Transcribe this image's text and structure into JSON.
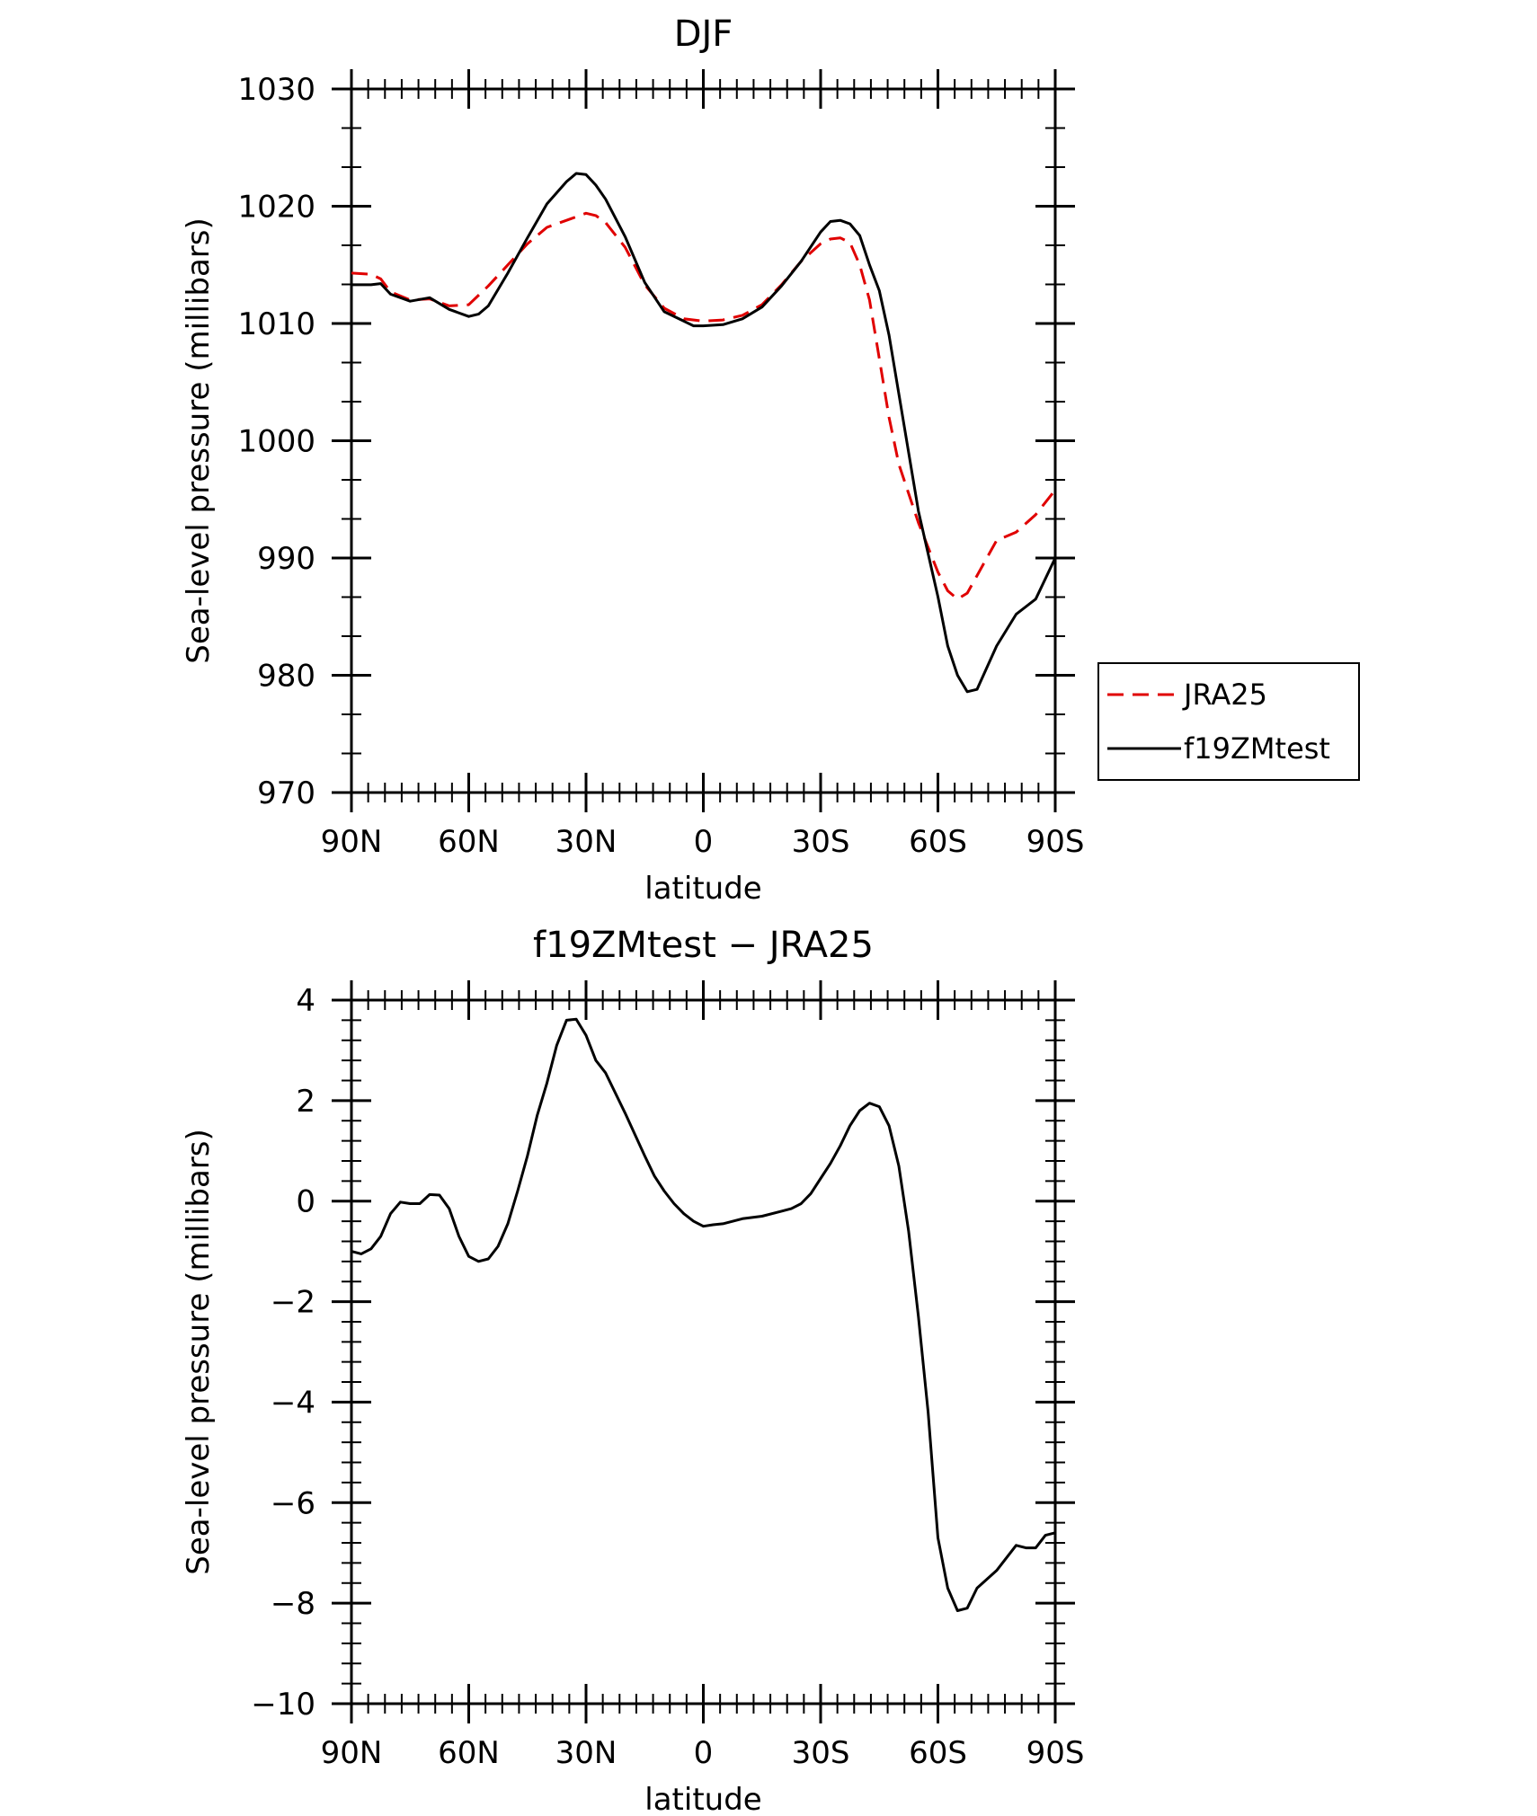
{
  "chart_data": [
    {
      "type": "line",
      "title": "DJF",
      "xlabel": "latitude",
      "ylabel": "Sea-level pressure (millibars)",
      "xlim": [
        90,
        -90
      ],
      "ylim": [
        970,
        1030
      ],
      "x_ticks": [
        {
          "value": 90,
          "label": "90N"
        },
        {
          "value": 60,
          "label": "60N"
        },
        {
          "value": 30,
          "label": "30N"
        },
        {
          "value": 0,
          "label": "0"
        },
        {
          "value": -30,
          "label": "30S"
        },
        {
          "value": -60,
          "label": "60S"
        },
        {
          "value": -90,
          "label": "90S"
        }
      ],
      "y_ticks": [
        {
          "value": 1030,
          "label": "1030"
        },
        {
          "value": 1020,
          "label": "1020"
        },
        {
          "value": 1010,
          "label": "1010"
        },
        {
          "value": 1000,
          "label": "1000"
        },
        {
          "value": 990,
          "label": "990"
        },
        {
          "value": 980,
          "label": "980"
        },
        {
          "value": 970,
          "label": "970"
        }
      ],
      "legend_position": "outside-right",
      "series": [
        {
          "name": "JRA25",
          "color": "#e00000",
          "dash": "dashed",
          "x": [
            90,
            85,
            82.5,
            80,
            75,
            70,
            65,
            60,
            55,
            50,
            45,
            40,
            35,
            30,
            27.5,
            25,
            20,
            15,
            10,
            5,
            0,
            -5,
            -10,
            -15,
            -20,
            -25,
            -30,
            -32.5,
            -35,
            -37.5,
            -40,
            -42.5,
            -45,
            -47.5,
            -50,
            -55,
            -60,
            -62.5,
            -65,
            -67.5,
            -70,
            -75,
            -80,
            -85,
            -90
          ],
          "y": [
            1014.3,
            1014.2,
            1013.8,
            1012.7,
            1012.0,
            1012.1,
            1011.5,
            1011.6,
            1013.2,
            1015.0,
            1016.8,
            1018.2,
            1018.8,
            1019.4,
            1019.2,
            1018.6,
            1016.5,
            1013.3,
            1011.3,
            1010.4,
            1010.2,
            1010.3,
            1010.7,
            1011.6,
            1013.3,
            1015.3,
            1016.8,
            1017.2,
            1017.3,
            1016.9,
            1015.0,
            1012.0,
            1007.0,
            1002.0,
            998.0,
            993.0,
            988.8,
            987.2,
            986.5,
            987.0,
            988.5,
            991.5,
            992.2,
            993.7,
            995.8
          ]
        },
        {
          "name": "f19ZMtest",
          "color": "#000000",
          "dash": "solid",
          "x": [
            90,
            85,
            82.5,
            80,
            75,
            70,
            65,
            60,
            57.5,
            55,
            50,
            45,
            40,
            35,
            32.5,
            30,
            27.5,
            25,
            20,
            15,
            10,
            5,
            2.5,
            0,
            -5,
            -10,
            -15,
            -20,
            -25,
            -30,
            -32.5,
            -35,
            -37.5,
            -40,
            -42.5,
            -45,
            -47.5,
            -50,
            -55,
            -60,
            -62.5,
            -65,
            -67.5,
            -70,
            -75,
            -80,
            -85,
            -90
          ],
          "y": [
            1013.3,
            1013.3,
            1013.4,
            1012.5,
            1011.9,
            1012.2,
            1011.2,
            1010.6,
            1010.8,
            1011.5,
            1014.3,
            1017.3,
            1020.2,
            1022.1,
            1022.8,
            1022.7,
            1021.8,
            1020.6,
            1017.4,
            1013.5,
            1011.0,
            1010.2,
            1009.8,
            1009.8,
            1009.9,
            1010.4,
            1011.4,
            1013.2,
            1015.3,
            1017.8,
            1018.7,
            1018.8,
            1018.5,
            1017.5,
            1015.0,
            1012.8,
            1009.0,
            1004.0,
            994.0,
            986.7,
            982.5,
            980.0,
            978.6,
            978.8,
            982.5,
            985.2,
            986.5,
            990.0
          ]
        }
      ]
    },
    {
      "type": "line",
      "title": "f19ZMtest − JRA25",
      "xlabel": "latitude",
      "ylabel": "Sea-level pressure (millibars)",
      "xlim": [
        90,
        -90
      ],
      "ylim": [
        -10,
        4
      ],
      "x_ticks": [
        {
          "value": 90,
          "label": "90N"
        },
        {
          "value": 60,
          "label": "60N"
        },
        {
          "value": 30,
          "label": "30N"
        },
        {
          "value": 0,
          "label": "0"
        },
        {
          "value": -30,
          "label": "30S"
        },
        {
          "value": -60,
          "label": "60S"
        },
        {
          "value": -90,
          "label": "90S"
        }
      ],
      "y_ticks": [
        {
          "value": 4,
          "label": "4"
        },
        {
          "value": 2,
          "label": "2"
        },
        {
          "value": 0,
          "label": "0"
        },
        {
          "value": -2,
          "label": "−2"
        },
        {
          "value": -4,
          "label": "−4"
        },
        {
          "value": -6,
          "label": "−6"
        },
        {
          "value": -8,
          "label": "−8"
        },
        {
          "value": -10,
          "label": "−10"
        }
      ],
      "series": [
        {
          "color": "#000000",
          "dash": "solid",
          "x": [
            90,
            87.5,
            85,
            82.5,
            80,
            77.5,
            75,
            72.5,
            70,
            67.5,
            65,
            62.5,
            60,
            57.5,
            55,
            52.5,
            50,
            47.5,
            45,
            42.5,
            40,
            37.5,
            35,
            32.5,
            30,
            27.5,
            25,
            20,
            15,
            12.5,
            10,
            7.5,
            5,
            2.5,
            0,
            -2.5,
            -5,
            -10,
            -15,
            -20,
            -22.5,
            -25,
            -27.5,
            -30,
            -32.5,
            -35,
            -37.5,
            -40,
            -42.5,
            -45,
            -47.5,
            -50,
            -52.5,
            -55,
            -57.5,
            -60,
            -62.5,
            -65,
            -67.5,
            -70,
            -75,
            -80,
            -82.5,
            -85,
            -87.5,
            -90
          ],
          "y": [
            -1.0,
            -1.05,
            -0.95,
            -0.7,
            -0.25,
            -0.02,
            -0.05,
            -0.05,
            0.13,
            0.12,
            -0.15,
            -0.7,
            -1.1,
            -1.2,
            -1.15,
            -0.9,
            -0.45,
            0.2,
            0.9,
            1.7,
            2.35,
            3.1,
            3.6,
            3.62,
            3.3,
            2.8,
            2.55,
            1.75,
            0.9,
            0.5,
            0.2,
            -0.05,
            -0.25,
            -0.4,
            -0.5,
            -0.47,
            -0.45,
            -0.35,
            -0.3,
            -0.2,
            -0.15,
            -0.05,
            0.15,
            0.45,
            0.75,
            1.1,
            1.5,
            1.8,
            1.95,
            1.88,
            1.5,
            0.7,
            -0.6,
            -2.3,
            -4.2,
            -6.7,
            -7.7,
            -8.15,
            -8.1,
            -7.7,
            -7.35,
            -6.85,
            -6.9,
            -6.9,
            -6.65,
            -6.6
          ]
        }
      ]
    }
  ],
  "legend": [
    {
      "label": "JRA25",
      "color": "#e00000",
      "dash": "dashed"
    },
    {
      "label": "f19ZMtest",
      "color": "#000000",
      "dash": "solid"
    }
  ]
}
